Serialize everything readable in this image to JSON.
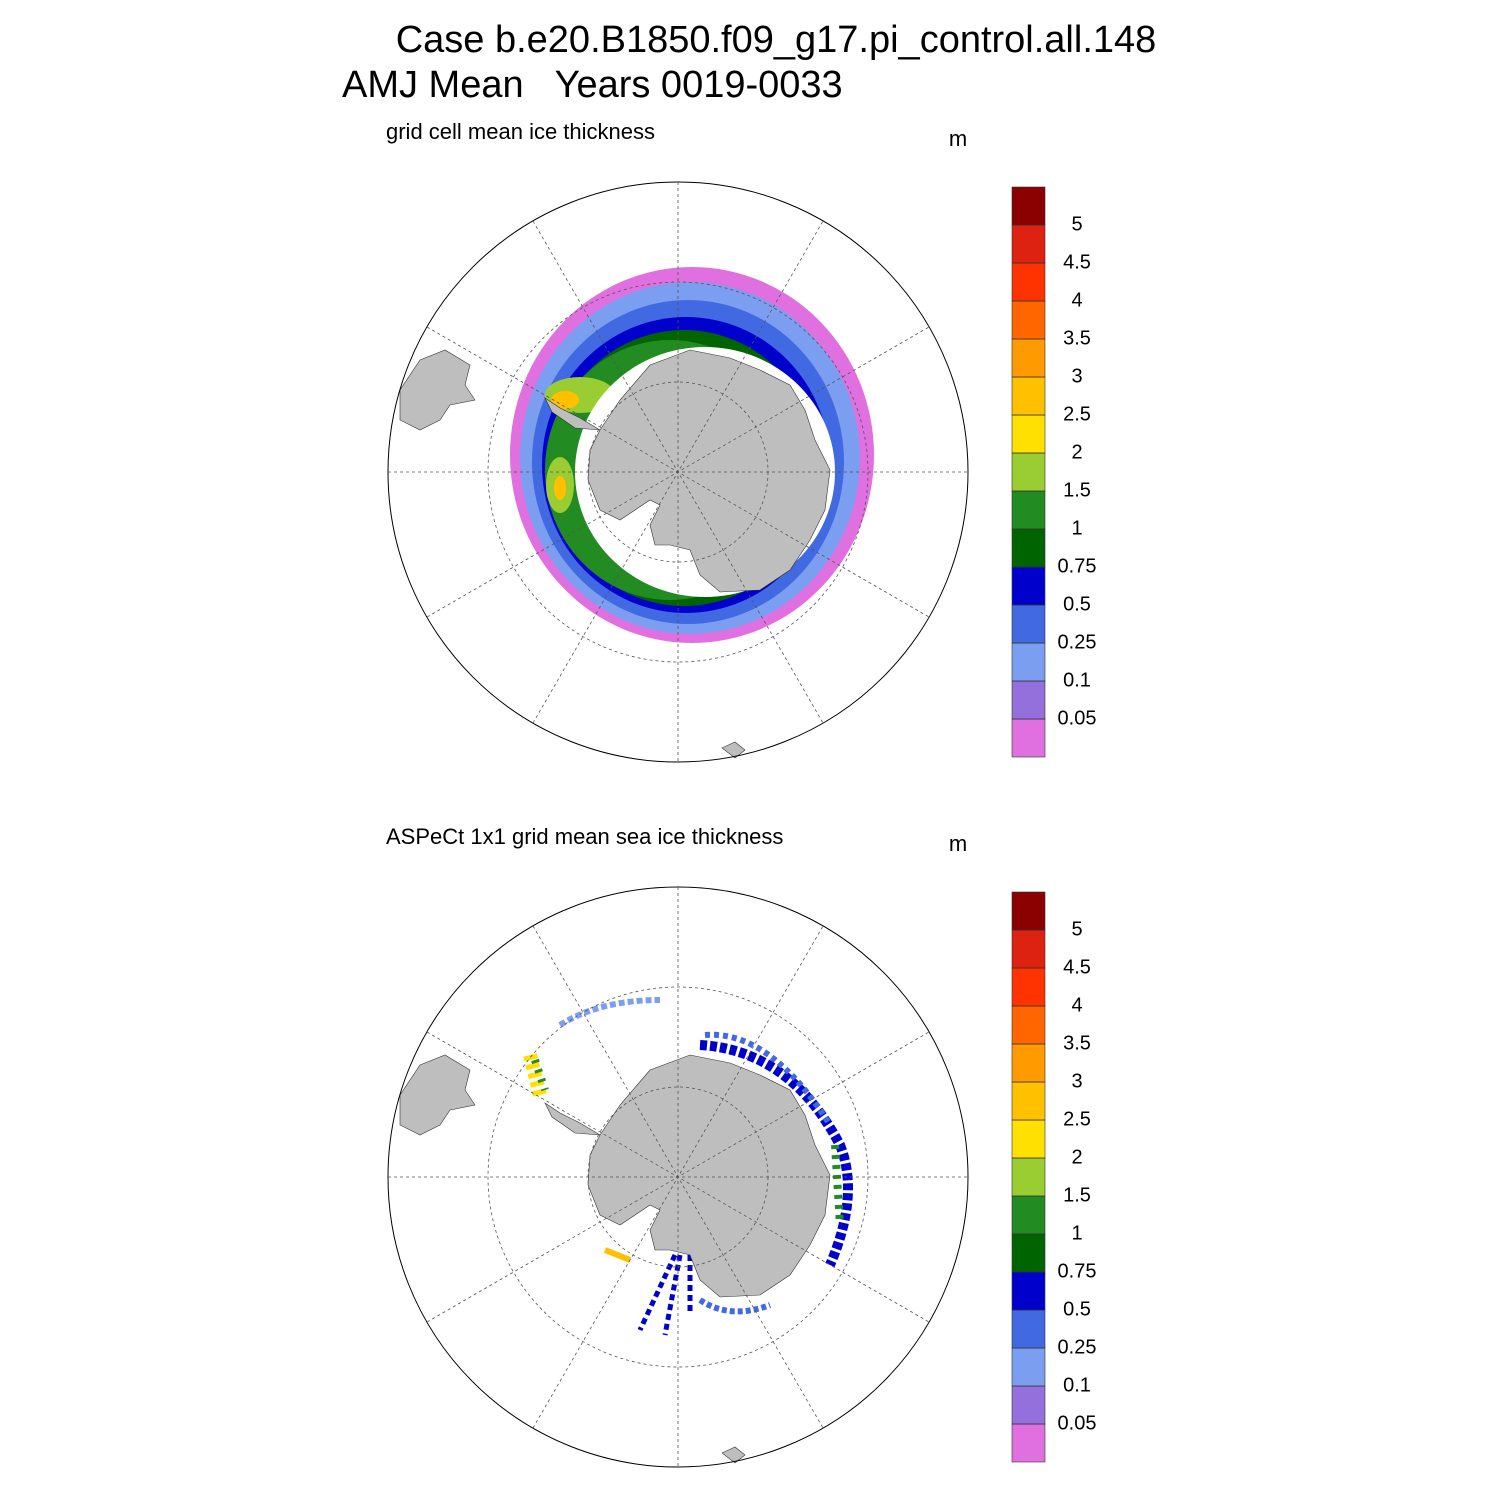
{
  "title": [
    "Case b.e20.B1850.f09_g17.pi_control.all.148",
    "AMJ Mean   Years 0019-0033"
  ],
  "panels": [
    {
      "title": "grid cell mean ice thickness",
      "units": "m"
    },
    {
      "title": "ASPeCt 1x1 grid mean sea ice thickness",
      "units": "m"
    }
  ],
  "colorbar": {
    "levels": [
      0.05,
      0.1,
      0.25,
      0.5,
      0.75,
      1,
      1.5,
      2,
      2.5,
      3,
      3.5,
      4,
      4.5,
      5
    ],
    "colors": [
      "#e070e0",
      "#9370db",
      "#7b9ef0",
      "#4169e1",
      "#0000cd",
      "#006400",
      "#228b22",
      "#9acd32",
      "#ffe000",
      "#ffc000",
      "#ff9a00",
      "#ff6600",
      "#ff3300",
      "#dd2211",
      "#8b0000"
    ]
  }
}
